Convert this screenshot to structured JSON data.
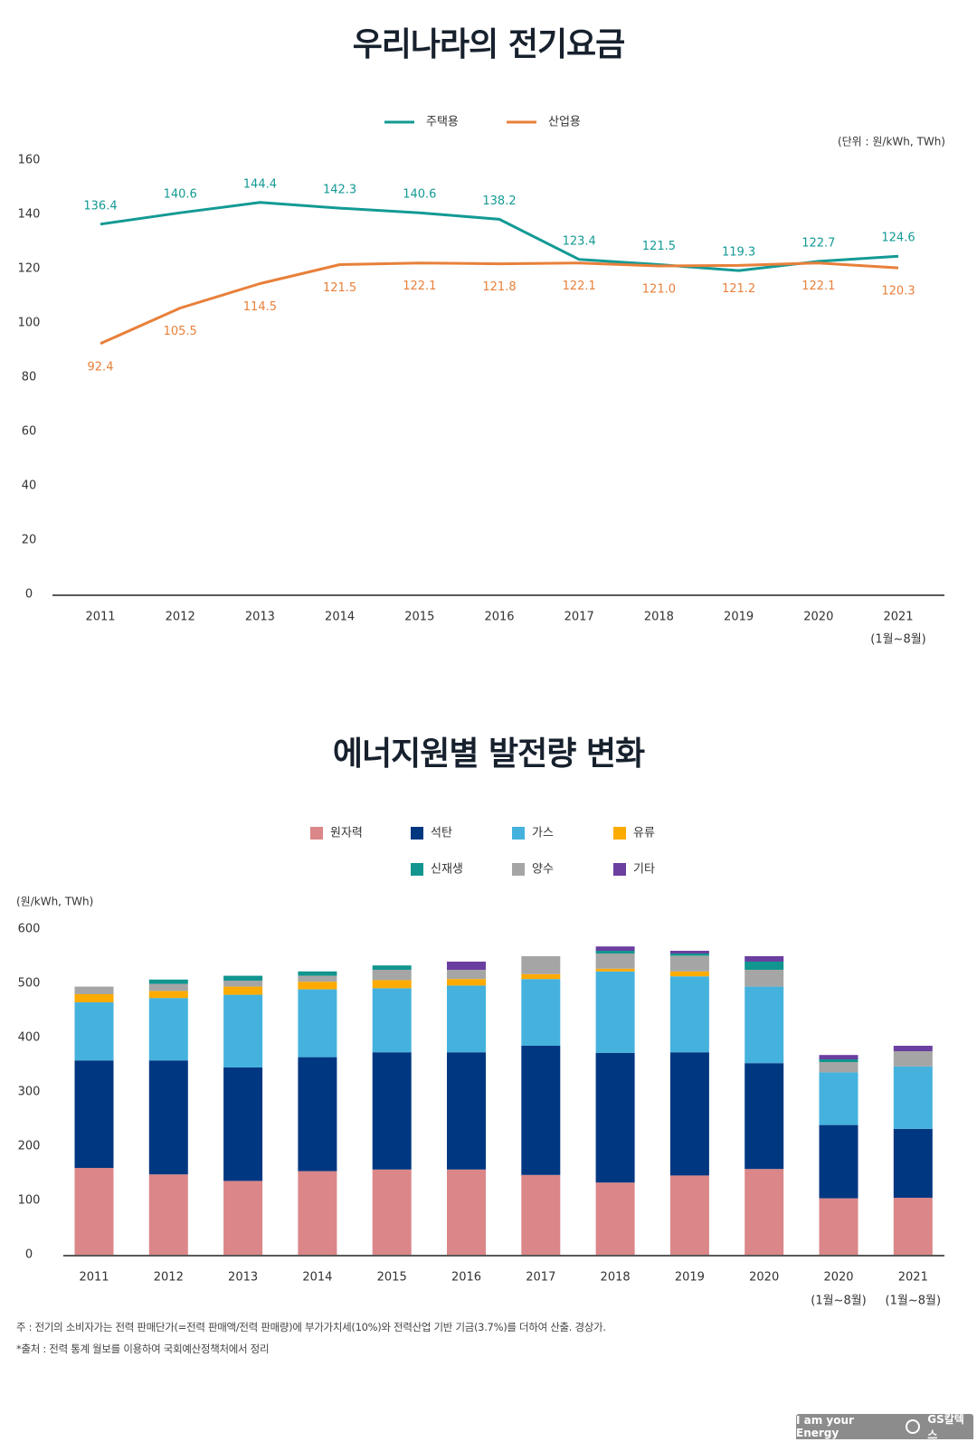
{
  "chart_data": [
    {
      "type": "line",
      "title": "우리나라의 전기요금",
      "unit": "(단위 : 원/kWh, TWh)",
      "categories": [
        "2011",
        "2012",
        "2013",
        "2014",
        "2015",
        "2016",
        "2017",
        "2018",
        "2019",
        "2020",
        "2021"
      ],
      "category_notes": [
        "",
        "",
        "",
        "",
        "",
        "",
        "",
        "",
        "",
        "",
        "(1월~8월)"
      ],
      "ylim": [
        0,
        160
      ],
      "yticks": [
        0,
        20,
        40,
        60,
        80,
        100,
        120,
        140,
        160
      ],
      "grid": false,
      "legend": "top-center",
      "series": [
        {
          "name": "주택용",
          "color": "#139a94",
          "values": [
            136.4,
            140.6,
            144.4,
            142.3,
            140.6,
            138.2,
            123.4,
            121.5,
            119.3,
            122.7,
            124.6
          ]
        },
        {
          "name": "산업용",
          "color": "#e8803a",
          "values": [
            92.4,
            105.5,
            114.5,
            121.5,
            122.1,
            121.8,
            122.1,
            121.0,
            121.2,
            122.1,
            120.3
          ]
        }
      ]
    },
    {
      "type": "bar",
      "stacked": true,
      "title": "에너지원별 발전량 변화",
      "unit": "(원/kWh, TWh)",
      "categories": [
        "2011",
        "2012",
        "2013",
        "2014",
        "2015",
        "2016",
        "2017",
        "2018",
        "2019",
        "2020",
        "2020",
        "2021"
      ],
      "category_notes": [
        "",
        "",
        "",
        "",
        "",
        "",
        "",
        "",
        "",
        "",
        "(1월~8월)",
        "(1월~8월)"
      ],
      "ylim": [
        0,
        600
      ],
      "yticks": [
        0,
        100,
        200,
        300,
        400,
        500,
        600
      ],
      "grid": false,
      "legend": "top-center",
      "legend_order": [
        "원자력",
        "석탄",
        "가스",
        "유류",
        "신재생",
        "양수",
        "기타"
      ],
      "series": [
        {
          "name": "원자력",
          "color": "#db8688",
          "values": [
            160,
            148,
            136,
            154,
            157,
            157,
            147,
            133,
            146,
            158,
            104,
            105
          ]
        },
        {
          "name": "석탄",
          "color": "#003781",
          "values": [
            198,
            210,
            209,
            210,
            216,
            216,
            238,
            239,
            227,
            195,
            135,
            127
          ]
        },
        {
          "name": "가스",
          "color": "#45b2de",
          "values": [
            107,
            115,
            134,
            125,
            118,
            123,
            123,
            150,
            140,
            141,
            97,
            115
          ]
        },
        {
          "name": "유류",
          "color": "#fdab00",
          "values": [
            15,
            13,
            15,
            14,
            15,
            12,
            9,
            5,
            9,
            0,
            0,
            0
          ]
        },
        {
          "name": "양수",
          "color": "#a5a5a5",
          "values": [
            14,
            13,
            11,
            11,
            19,
            17,
            33,
            28,
            29,
            31,
            19,
            28
          ]
        },
        {
          "name": "신재생",
          "color": "#11968f",
          "values": [
            0,
            8,
            9,
            8,
            8,
            0,
            0,
            5,
            4,
            15,
            5,
            0
          ]
        },
        {
          "name": "기타",
          "color": "#6a3fa0",
          "values": [
            0,
            0,
            0,
            0,
            0,
            15,
            0,
            8,
            5,
            10,
            8,
            10
          ]
        }
      ]
    }
  ],
  "notes": {
    "note1": "주 : 전기의 소비자가는 전력 판매단가(=전력 판매액/전력 판매량)에 부가가치세(10%)와 전력산업 기반 기금(3.7%)를 더하여 산출. 경상가.",
    "note2": "*출처 : 전력 통계 월보를 이용하여 국회예산정책처에서 정리"
  },
  "logo": {
    "slogan": "I am your Energy",
    "brand": "GS칼텍스"
  }
}
